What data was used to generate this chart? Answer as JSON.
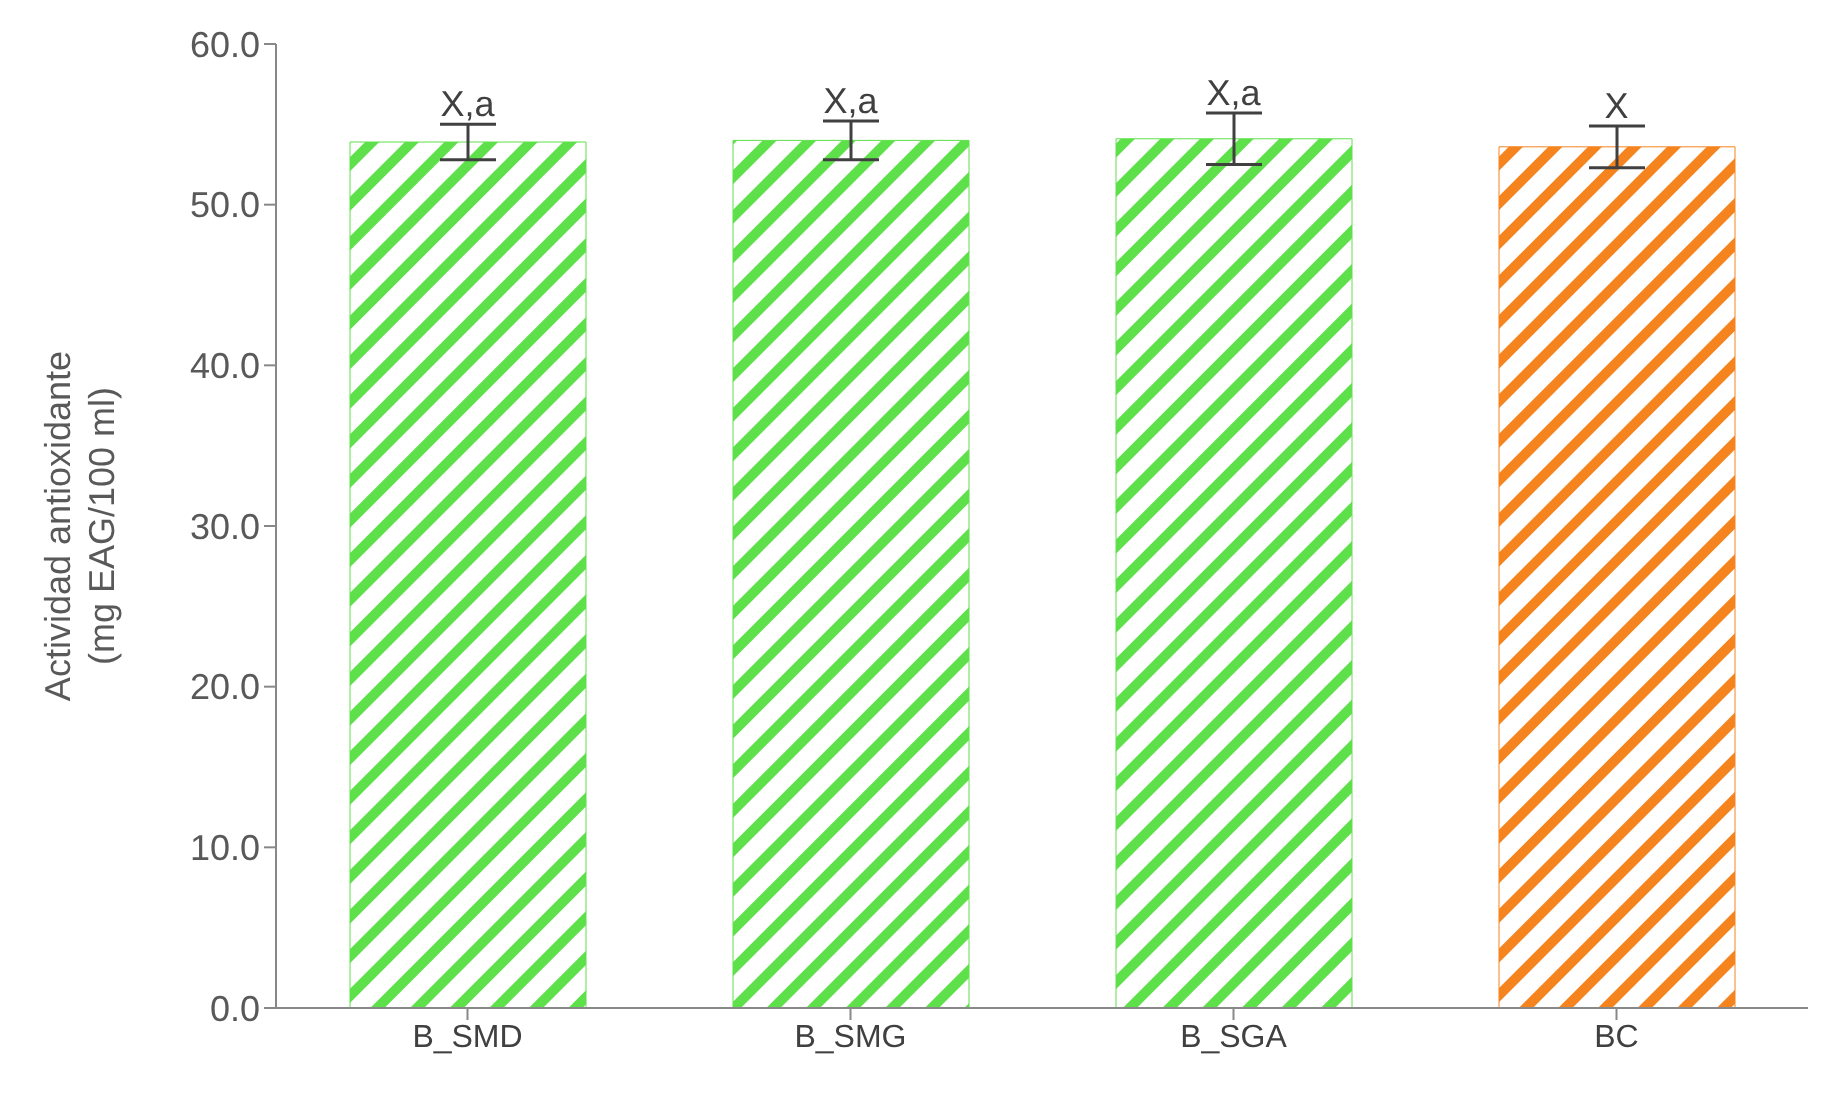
{
  "chart_data": {
    "type": "bar",
    "ylabel": "Actividad antioxidante\n(mg EAG/100 ml)",
    "categories": [
      "B_SMD",
      "B_SMG",
      "B_SGA",
      "BC"
    ],
    "values": [
      53.9,
      54.0,
      54.1,
      53.6
    ],
    "errors": [
      1.1,
      1.2,
      1.6,
      1.3
    ],
    "colors": [
      "#5ee04a",
      "#5ee04a",
      "#5ee04a",
      "#f5841f"
    ],
    "ylim": [
      0,
      60
    ],
    "yticks": [
      {
        "value": 0,
        "label": "0.0"
      },
      {
        "value": 10,
        "label": "10.0"
      },
      {
        "value": 20,
        "label": "20.0"
      },
      {
        "value": 30,
        "label": "30.0"
      },
      {
        "value": 40,
        "label": "40.0"
      },
      {
        "value": 50,
        "label": "50.0"
      },
      {
        "value": 60,
        "label": "60.0"
      }
    ],
    "grid": false,
    "annotations": [
      {
        "text": "X,a",
        "x": "B_SMD",
        "y": 55.0
      },
      {
        "text": "X,a",
        "x": "B_SMG",
        "y": 55.2
      },
      {
        "text": "X,a",
        "x": "B_SGA",
        "y": 55.7
      },
      {
        "text": "X",
        "x": "BC",
        "y": 54.9
      }
    ]
  }
}
